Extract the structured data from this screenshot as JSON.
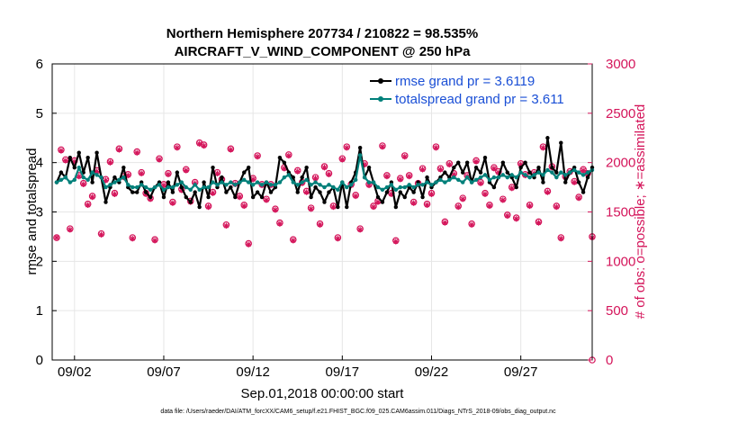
{
  "chart_data": {
    "type": "line",
    "title": "Northern Hemisphere 207734 / 210822 = 98.535%",
    "subtitle": "AIRCRAFT_V_WIND_COMPONENT @ 250 hPa",
    "xlabel": "Sep.01,2018 00:00:00 start",
    "ylabel_left": "rmse and totalspread",
    "ylabel_right": "# of obs: o=possible; ∗=assimilated",
    "footnote": "data file: /Users/raeder/DAI/ATM_forcXX/CAM6_setup/f.e21.FHIST_BGC.f09_025.CAM6assim.011/Diags_NTrS_2018-09/obs_diag_output.nc",
    "x_tick_labels": [
      "09/02",
      "09/07",
      "09/12",
      "09/17",
      "09/22",
      "09/27"
    ],
    "x_tick_days": [
      2,
      7,
      12,
      17,
      22,
      27
    ],
    "xlim_days": [
      0.75,
      31.0
    ],
    "ylim_left": [
      0,
      6
    ],
    "yticks_left": [
      "0",
      "1",
      "2",
      "3",
      "4",
      "5",
      "6"
    ],
    "ylim_right": [
      0,
      3000
    ],
    "yticks_right": [
      "0",
      "500",
      "1000",
      "1500",
      "2000",
      "2500",
      "3000"
    ],
    "colors": {
      "rmse": "#000000",
      "spread": "#00807a",
      "obs": "#d4145a",
      "legend_text": "#1a4fd6",
      "grid": "#e6e6e6"
    },
    "series": [
      {
        "name": "rmse grand pr = 3.6119",
        "key": "rmse",
        "values": [
          3.6,
          3.8,
          3.7,
          4.1,
          3.9,
          4.2,
          3.8,
          4.1,
          3.6,
          4.2,
          3.7,
          3.2,
          3.5,
          3.7,
          3.6,
          3.9,
          3.5,
          3.4,
          3.4,
          3.6,
          3.4,
          3.3,
          3.5,
          3.6,
          3.3,
          3.6,
          3.4,
          3.8,
          3.5,
          3.3,
          3.2,
          3.4,
          3.1,
          3.6,
          3.3,
          3.9,
          3.5,
          3.7,
          3.4,
          3.5,
          3.3,
          3.6,
          3.8,
          3.9,
          3.3,
          3.4,
          3.3,
          3.6,
          3.4,
          3.5,
          4.1,
          4.0,
          3.8,
          3.7,
          3.4,
          3.7,
          3.9,
          3.3,
          3.5,
          3.4,
          3.2,
          3.4,
          3.5,
          3.1,
          3.6,
          3.1,
          3.6,
          3.8,
          4.3,
          3.7,
          3.9,
          3.6,
          3.3,
          3.2,
          3.4,
          3.6,
          3.1,
          3.4,
          3.3,
          3.5,
          3.4,
          3.6,
          3.3,
          3.7,
          3.5,
          3.6,
          3.7,
          3.8,
          3.7,
          3.9,
          4.0,
          3.8,
          4.0,
          3.6,
          3.9,
          3.8,
          4.1,
          3.6,
          3.5,
          3.7,
          4.0,
          3.8,
          3.7,
          3.5,
          3.9,
          4.0,
          3.8,
          3.7,
          3.9,
          3.6,
          4.5,
          3.9,
          3.8,
          4.4,
          3.6,
          3.8,
          3.9,
          3.6,
          3.4,
          3.7,
          3.9,
          3.8,
          3.5,
          3.9,
          3.6,
          3.8,
          3.7,
          4.0,
          3.9,
          3.7,
          3.8,
          3.6,
          3.9,
          4.1
        ]
      },
      {
        "name": "totalspread grand pr = 3.611",
        "key": "spread",
        "values": [
          3.6,
          3.65,
          3.7,
          3.6,
          3.65,
          3.9,
          3.7,
          3.65,
          3.8,
          3.75,
          3.7,
          3.5,
          3.55,
          3.6,
          3.65,
          3.7,
          3.55,
          3.5,
          3.5,
          3.55,
          3.5,
          3.45,
          3.5,
          3.55,
          3.45,
          3.5,
          3.5,
          3.55,
          3.6,
          3.5,
          3.45,
          3.55,
          3.45,
          3.5,
          3.5,
          3.6,
          3.55,
          3.6,
          3.55,
          3.6,
          3.55,
          3.6,
          3.65,
          3.6,
          3.55,
          3.6,
          3.55,
          3.6,
          3.55,
          3.55,
          3.6,
          3.7,
          3.75,
          3.6,
          3.55,
          3.6,
          3.65,
          3.55,
          3.6,
          3.55,
          3.5,
          3.55,
          3.5,
          3.45,
          3.6,
          3.5,
          3.55,
          3.65,
          4.15,
          3.7,
          3.6,
          3.6,
          3.5,
          3.45,
          3.5,
          3.55,
          3.45,
          3.5,
          3.5,
          3.55,
          3.5,
          3.55,
          3.55,
          3.6,
          3.55,
          3.6,
          3.65,
          3.6,
          3.65,
          3.7,
          3.65,
          3.6,
          3.7,
          3.6,
          3.65,
          3.7,
          3.75,
          3.65,
          3.7,
          3.7,
          3.75,
          3.7,
          3.75,
          3.7,
          3.8,
          3.75,
          3.7,
          3.75,
          3.8,
          3.75,
          3.85,
          3.8,
          3.7,
          3.8,
          3.75,
          3.8,
          3.85,
          3.8,
          3.75,
          3.8,
          3.85,
          3.85,
          3.8,
          3.9,
          3.85,
          3.9,
          3.85,
          3.95,
          3.9,
          3.85,
          3.9,
          3.85,
          3.8,
          3.85
        ]
      }
    ],
    "obs_possible": [
      1240,
      2130,
      2030,
      1330,
      2020,
      1870,
      1790,
      1580,
      1660,
      1920,
      1280,
      1830,
      2010,
      1690,
      2140,
      1860,
      1880,
      1240,
      2110,
      1900,
      1690,
      1640,
      1220,
      2040,
      1780,
      1890,
      1600,
      2160,
      1730,
      1930,
      1610,
      1800,
      2200,
      2180,
      1560,
      1700,
      1900,
      1830,
      1370,
      2140,
      1790,
      1660,
      1570,
      1180,
      1840,
      2070,
      1780,
      1630,
      1780,
      1530,
      1390,
      1950,
      2080,
      1220,
      1920,
      1800,
      1710,
      1540,
      1850,
      1380,
      1960,
      1890,
      1560,
      1240,
      2040,
      2160,
      1780,
      1670,
      1330,
      1990,
      1780,
      1560,
      1610,
      2170,
      1870,
      1690,
      1210,
      1840,
      2070,
      1870,
      1600,
      1790,
      1940,
      1580,
      1690,
      2160,
      1940,
      1400,
      1990,
      1890,
      1560,
      1640,
      1870,
      1380,
      2020,
      1800,
      1690,
      1570,
      1950,
      1910,
      1630,
      1470,
      1750,
      1440,
      1990,
      1880,
      1570,
      1900,
      1400,
      2160,
      1710,
      1960,
      1560,
      1240,
      1860,
      1910,
      1810,
      1650,
      1930,
      1890,
      1250,
      1760,
      2010,
      1860,
      1550,
      2110,
      1910,
      1650,
      1860,
      1790,
      2070,
      1710,
      1830,
      1820,
      1260,
      2140,
      1990,
      1660,
      2120,
      1810,
      1540,
      1780,
      1600,
      2080,
      1720,
      1950,
      1390,
      1630,
      2040,
      1780
    ],
    "obs_assimilated": [
      1240,
      2120,
      2020,
      1320,
      2010,
      1860,
      1780,
      1570,
      1650,
      1910,
      1270,
      1820,
      2000,
      1680,
      2130,
      1850,
      1870,
      1230,
      2100,
      1890,
      1680,
      1630,
      1210,
      2030,
      1770,
      1880,
      1590,
      2150,
      1720,
      1920,
      1600,
      1790,
      2190,
      2170,
      1550,
      1690,
      1890,
      1820,
      1360,
      2130,
      1780,
      1650,
      1560,
      1170,
      1830,
      2060,
      1770,
      1620,
      1770,
      1520,
      1380,
      1940,
      2070,
      1210,
      1910,
      1790,
      1700,
      1530,
      1840,
      1370,
      1950,
      1880,
      1550,
      1230,
      2030,
      2150,
      1770,
      1660,
      1320,
      1980,
      1770,
      1550,
      1600,
      2160,
      1860,
      1680,
      1200,
      1830,
      2060,
      1860,
      1590,
      1780,
      1930,
      1570,
      1680,
      2150,
      1930,
      1390,
      1980,
      1880,
      1550,
      1630,
      1860,
      1370,
      2010,
      1790,
      1680,
      1560,
      1940,
      1900,
      1620,
      1460,
      1740,
      1430,
      1980,
      1870,
      1560,
      1890,
      1390,
      2150,
      1700,
      1950,
      1550,
      1230,
      1850,
      1900,
      1800,
      1640,
      1920,
      1880,
      1240,
      1750,
      2000,
      1850,
      1540,
      2100,
      1900,
      1640,
      1850,
      1780,
      2060,
      1700,
      1820,
      1810,
      1250,
      2130,
      1980,
      1650,
      2110,
      1800,
      1530,
      1770,
      1590,
      2070,
      1710,
      1940,
      1380,
      1620,
      2030,
      1770
    ]
  },
  "legend": {
    "rmse_label": "rmse grand pr = 3.6119",
    "spread_label": "totalspread grand pr = 3.611"
  }
}
